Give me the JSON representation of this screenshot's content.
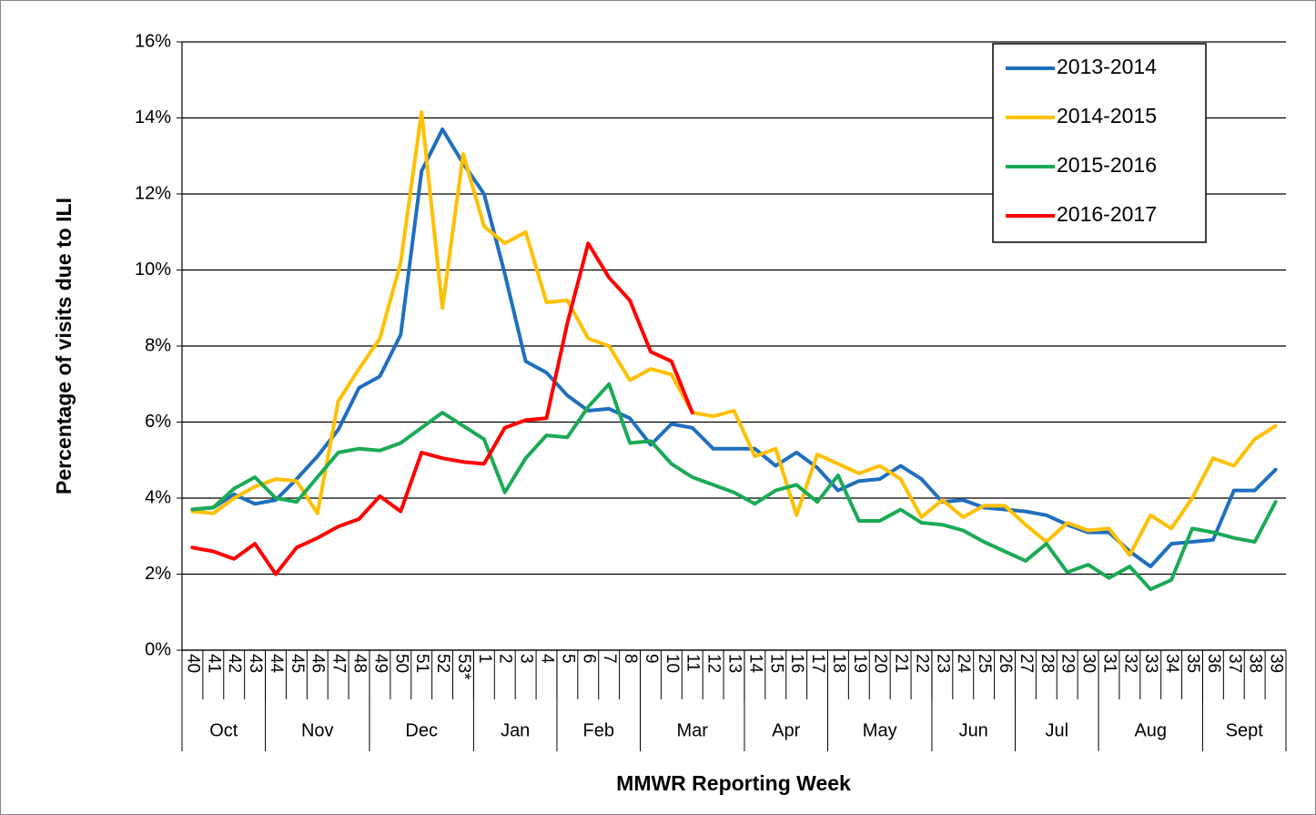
{
  "chart_data": {
    "type": "line",
    "y_axis_label": "Percentage of visits due to ILI",
    "x_axis_label": "MMWR Reporting Week",
    "categories": [
      "40",
      "41",
      "42",
      "43",
      "44",
      "45",
      "46",
      "47",
      "48",
      "49",
      "50",
      "51",
      "52",
      "53*",
      "1",
      "2",
      "3",
      "4",
      "5",
      "6",
      "7",
      "8",
      "9",
      "10",
      "11",
      "12",
      "13",
      "14",
      "15",
      "16",
      "17",
      "18",
      "19",
      "20",
      "21",
      "22",
      "23",
      "24",
      "25",
      "26",
      "27",
      "28",
      "29",
      "30",
      "31",
      "32",
      "33",
      "34",
      "35",
      "36",
      "37",
      "38",
      "39"
    ],
    "x_groups": [
      {
        "label": "Oct",
        "span": 4
      },
      {
        "label": "Nov",
        "span": 5
      },
      {
        "label": "Dec",
        "span": 5
      },
      {
        "label": "Jan",
        "span": 4
      },
      {
        "label": "Feb",
        "span": 4
      },
      {
        "label": "Mar",
        "span": 5
      },
      {
        "label": "Apr",
        "span": 4
      },
      {
        "label": "May",
        "span": 5
      },
      {
        "label": "Jun",
        "span": 4
      },
      {
        "label": "Jul",
        "span": 4
      },
      {
        "label": "Aug",
        "span": 5
      },
      {
        "label": "Sept",
        "span": 4
      }
    ],
    "ylim": [
      0,
      16
    ],
    "yticks": [
      {
        "value": 0,
        "label": "0%"
      },
      {
        "value": 2,
        "label": "2%"
      },
      {
        "value": 4,
        "label": "4%"
      },
      {
        "value": 6,
        "label": "6%"
      },
      {
        "value": 8,
        "label": "8%"
      },
      {
        "value": 10,
        "label": "10%"
      },
      {
        "value": 12,
        "label": "12%"
      },
      {
        "value": 14,
        "label": "14%"
      },
      {
        "value": 16,
        "label": "16%"
      }
    ],
    "grid": true,
    "legend_position": "top-right",
    "series": [
      {
        "name": "2013-2014",
        "color": "#1f6fbf",
        "values": [
          3.7,
          3.75,
          4.1,
          3.85,
          3.95,
          4.5,
          5.1,
          5.8,
          6.9,
          7.2,
          8.3,
          12.6,
          13.7,
          12.8,
          12.0,
          9.9,
          7.6,
          7.3,
          6.7,
          6.3,
          6.35,
          6.1,
          5.4,
          5.95,
          5.85,
          5.3,
          5.3,
          5.3,
          4.85,
          5.2,
          4.8,
          4.2,
          4.45,
          4.5,
          4.85,
          4.5,
          3.9,
          3.95,
          3.75,
          3.7,
          3.65,
          3.55,
          3.3,
          3.1,
          3.1,
          2.6,
          2.2,
          2.8,
          2.85,
          2.9,
          4.2,
          4.2,
          4.75
        ]
      },
      {
        "name": "2014-2015",
        "color": "#ffc000",
        "values": [
          3.65,
          3.6,
          4.0,
          4.3,
          4.5,
          4.45,
          3.6,
          6.55,
          7.4,
          8.2,
          10.2,
          14.15,
          9.0,
          13.05,
          11.15,
          10.7,
          11.0,
          9.15,
          9.2,
          8.2,
          8.0,
          7.1,
          7.4,
          7.25,
          6.25,
          6.15,
          6.3,
          5.1,
          5.3,
          3.55,
          5.15,
          4.9,
          4.65,
          4.85,
          4.5,
          3.5,
          3.95,
          3.5,
          3.8,
          3.8,
          3.3,
          2.85,
          3.35,
          3.15,
          3.2,
          2.5,
          3.55,
          3.2,
          4.0,
          5.05,
          4.85,
          5.55,
          5.9
        ]
      },
      {
        "name": "2015-2016",
        "color": "#1aaa55",
        "values": [
          3.7,
          3.75,
          4.25,
          4.55,
          4.0,
          3.9,
          4.55,
          5.2,
          5.3,
          5.25,
          5.45,
          5.85,
          6.25,
          5.9,
          5.55,
          4.15,
          5.05,
          5.65,
          5.6,
          6.4,
          7.0,
          5.45,
          5.5,
          4.9,
          4.55,
          4.35,
          4.15,
          3.85,
          4.2,
          4.35,
          3.9,
          4.6,
          3.4,
          3.4,
          3.7,
          3.35,
          3.3,
          3.15,
          2.85,
          2.6,
          2.35,
          2.8,
          2.05,
          2.25,
          1.9,
          2.2,
          1.6,
          1.85,
          3.2,
          3.1,
          2.95,
          2.85,
          3.9
        ]
      },
      {
        "name": "2016-2017",
        "color": "#ff0000",
        "values": [
          2.7,
          2.6,
          2.4,
          2.8,
          2.0,
          2.7,
          2.95,
          3.25,
          3.45,
          4.05,
          3.65,
          5.2,
          5.05,
          4.95,
          4.9,
          5.85,
          6.05,
          6.1,
          8.6,
          10.7,
          9.8,
          9.2,
          7.85,
          7.6,
          6.25,
          null,
          null,
          null,
          null,
          null,
          null,
          null,
          null,
          null,
          null,
          null,
          null,
          null,
          null,
          null,
          null,
          null,
          null,
          null,
          null,
          null,
          null,
          null,
          null,
          null,
          null,
          null,
          null
        ]
      }
    ]
  }
}
